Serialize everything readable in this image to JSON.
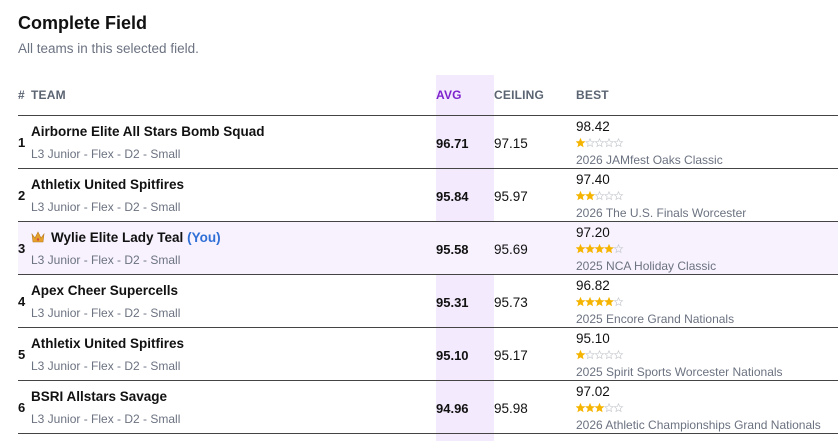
{
  "header": {
    "title": "Complete Field",
    "subtitle": "All teams in this selected field."
  },
  "table": {
    "columns": [
      "#",
      "TEAM",
      "AVG",
      "CEILING",
      "BEST"
    ],
    "rows": [
      {
        "rank": 1,
        "team": "Airborne Elite All Stars Bomb Squad",
        "division": "L3 Junior - Flex - D2 - Small",
        "avg": "96.71",
        "ceiling": "97.15",
        "best": "98.42",
        "stars": 1,
        "event": "2026 JAMfest Oaks Classic"
      },
      {
        "rank": 2,
        "team": "Athletix United Spitfires",
        "division": "L3 Junior - Flex - D2 - Small",
        "avg": "95.84",
        "ceiling": "95.97",
        "best": "97.40",
        "stars": 2,
        "event": "2026 The U.S. Finals Worcester"
      },
      {
        "rank": 3,
        "team": "Wylie Elite Lady Teal",
        "you": "(You)",
        "highlighted": true,
        "division": "L3 Junior - Flex - D2 - Small",
        "avg": "95.58",
        "ceiling": "95.69",
        "best": "97.20",
        "stars": 4,
        "event": "2025 NCA Holiday Classic"
      },
      {
        "rank": 4,
        "team": "Apex Cheer Supercells",
        "division": "L3 Junior - Flex - D2 - Small",
        "avg": "95.31",
        "ceiling": "95.73",
        "best": "96.82",
        "stars": 4,
        "event": "2025 Encore Grand Nationals"
      },
      {
        "rank": 5,
        "team": "Athletix United Spitfires",
        "division": "L3 Junior - Flex - D2 - Small",
        "avg": "95.10",
        "ceiling": "95.17",
        "best": "95.10",
        "stars": 1,
        "event": "2025 Spirit Sports Worcester Nationals"
      },
      {
        "rank": 6,
        "team": "BSRI Allstars Savage",
        "division": "L3 Junior - Flex - D2 - Small",
        "avg": "94.96",
        "ceiling": "95.98",
        "best": "97.02",
        "stars": 3,
        "event": "2026 Athletic Championships Grand Nationals"
      }
    ]
  }
}
